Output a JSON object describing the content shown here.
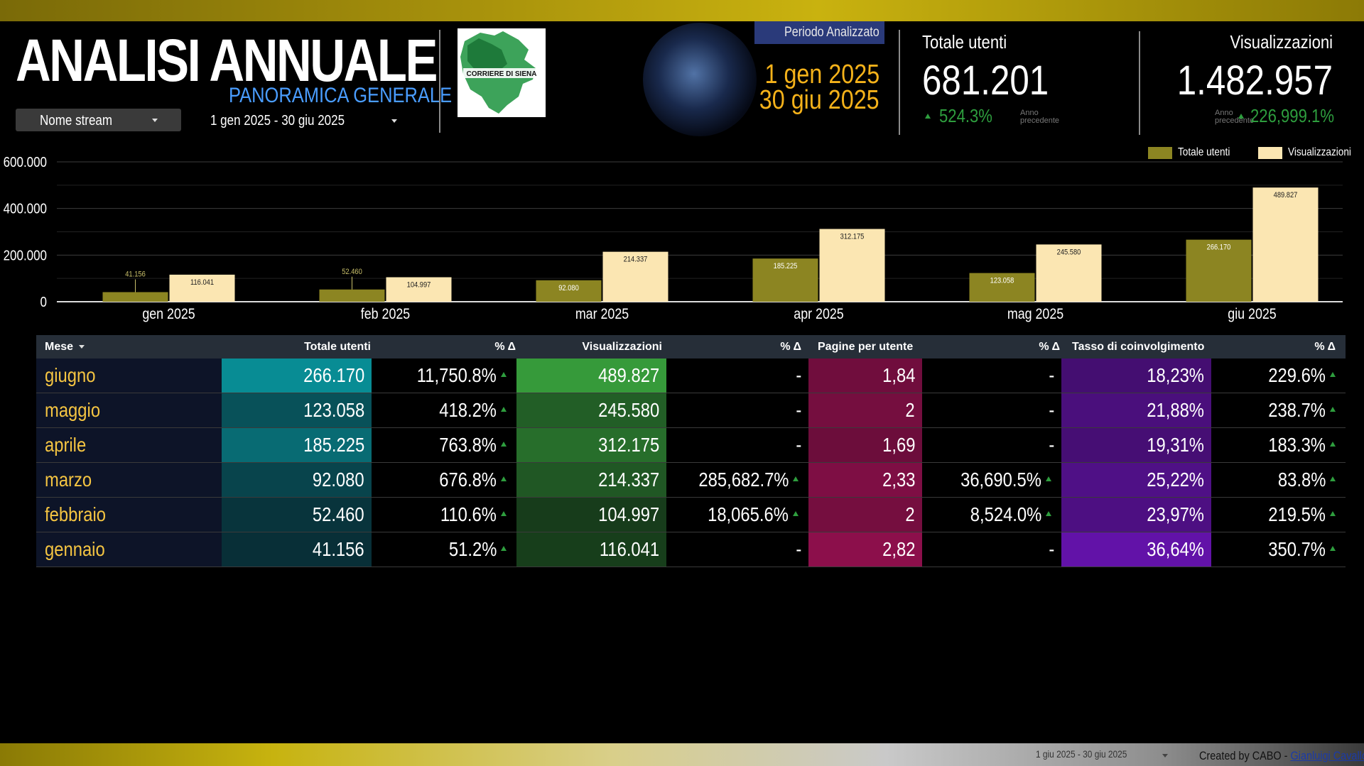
{
  "header": {
    "title": "ANALISI ANNUALE",
    "subtitle": "PANORAMICA GENERALE",
    "stream_dropdown": "Nome stream",
    "date_range": "1 gen 2025 - 30 giu 2025",
    "logo_text": "CORRIERE DI SIENA"
  },
  "period": {
    "label": "Periodo Analizzato",
    "start": "1 gen 2025",
    "end": "30 giu 2025"
  },
  "kpis": [
    {
      "label": "Totale utenti",
      "value": "681.201",
      "delta": "524.3%",
      "note": "Anno precedente"
    },
    {
      "label": "Visualizzazioni",
      "value": "1.482.957",
      "delta": "226,999.1%",
      "note": "Anno precedente"
    }
  ],
  "colors": {
    "accent_gold": "#c9b20f",
    "olive": "#8c8522",
    "cream": "#fbe6b2",
    "date_orange": "#f5b21a",
    "positive": "#2e9e3e",
    "subtitle_blue": "#4a9dff"
  },
  "chart_data": {
    "type": "bar",
    "categories": [
      "gen 2025",
      "feb 2025",
      "mar 2025",
      "apr 2025",
      "mag 2025",
      "giu 2025"
    ],
    "series": [
      {
        "name": "Totale utenti",
        "values": [
          41156,
          52460,
          92080,
          185225,
          123058,
          266170
        ],
        "labels": [
          "41.156",
          "52.460",
          "92.080",
          "185.225",
          "123.058",
          "266.170"
        ],
        "color": "#8c8522"
      },
      {
        "name": "Visualizzazioni",
        "values": [
          116041,
          104997,
          214337,
          312175,
          245580,
          489827
        ],
        "labels": [
          "116.041",
          "104.997",
          "214.337",
          "312.175",
          "245.580",
          "489.827"
        ],
        "color": "#fbe6b2"
      }
    ],
    "yticks": [
      "0",
      "200.000",
      "400.000",
      "600.000"
    ],
    "ylim": [
      0,
      600000
    ],
    "legend": "top-right",
    "grid": true
  },
  "table": {
    "headers": [
      "Mese",
      "Totale utenti",
      "% Δ",
      "Visualizzazioni",
      "% Δ",
      "Pagine per utente",
      "% Δ",
      "Tasso di coinvolgimento",
      "% Δ"
    ],
    "rows": [
      {
        "mese": "giugno",
        "utenti": "266.170",
        "d1": "11,750.8%",
        "visual": "489.827",
        "d2": "-",
        "pagine": "1,84",
        "d3": "-",
        "tasso": "18,23%",
        "d4": "229.6%"
      },
      {
        "mese": "maggio",
        "utenti": "123.058",
        "d1": "418.2%",
        "visual": "245.580",
        "d2": "-",
        "pagine": "2",
        "d3": "-",
        "tasso": "21,88%",
        "d4": "238.7%"
      },
      {
        "mese": "aprile",
        "utenti": "185.225",
        "d1": "763.8%",
        "visual": "312.175",
        "d2": "-",
        "pagine": "1,69",
        "d3": "-",
        "tasso": "19,31%",
        "d4": "183.3%"
      },
      {
        "mese": "marzo",
        "utenti": "92.080",
        "d1": "676.8%",
        "visual": "214.337",
        "d2": "285,682.7%",
        "pagine": "2,33",
        "d3": "36,690.5%",
        "tasso": "25,22%",
        "d4": "83.8%"
      },
      {
        "mese": "febbraio",
        "utenti": "52.460",
        "d1": "110.6%",
        "visual": "104.997",
        "d2": "18,065.6%",
        "pagine": "2",
        "d3": "8,524.0%",
        "tasso": "23,97%",
        "d4": "219.5%"
      },
      {
        "mese": "gennaio",
        "utenti": "41.156",
        "d1": "51.2%",
        "visual": "116.041",
        "d2": "-",
        "pagine": "2,82",
        "d3": "-",
        "tasso": "36,64%",
        "d4": "350.7%"
      }
    ]
  },
  "footer": {
    "date_range": "1 giu 2025 - 30 giu 2025",
    "credit": "Created by CABO - ",
    "author": "Gianluigi Cavallo"
  }
}
